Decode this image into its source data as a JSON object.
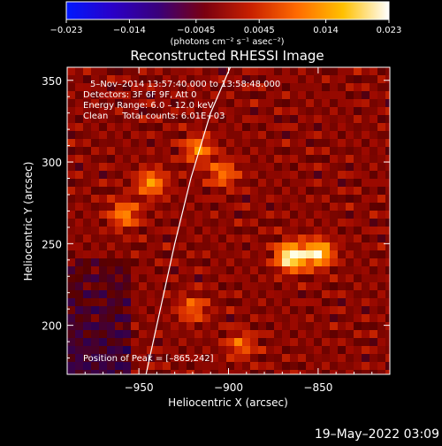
{
  "colorbar": {
    "tick_labels": [
      "−0.023",
      "−0.014",
      "−0.0045",
      "0.0045",
      "0.014",
      "0.023"
    ],
    "tick_values": [
      -0.023,
      -0.014,
      -0.0045,
      0.0045,
      0.014,
      0.023
    ],
    "range": [
      -0.023,
      0.023
    ],
    "unit_label": "(photons cm⁻² s⁻¹ asec⁻²)",
    "stops": [
      "#0018ff",
      "#2a00c8",
      "#3a007a",
      "#7a0010",
      "#c82000",
      "#ff6a00",
      "#ffc000",
      "#ffffff"
    ]
  },
  "title": "Reconstructed RHESSI Image",
  "annotations": {
    "time_range": "5–Nov–2014 13:57:40.000 to 13:58:48.000",
    "detectors": "Detectors: 3F 6F 9F, Att 0",
    "energy": "Energy Range: 6.0 – 12.0 keV",
    "clean": "Clean     Total counts: 6.01E+03",
    "peak": "Position of Peak = [–865,242]"
  },
  "footer_timestamp": "19–May–2022 03:09",
  "chart_data": {
    "type": "heatmap",
    "title": "Reconstructed RHESSI Image",
    "xlabel": "Heliocentric X (arcsec)",
    "ylabel": "Heliocentric Y (arcsec)",
    "xlim": [
      -990,
      -810
    ],
    "ylim": [
      170,
      358
    ],
    "xticks": [
      -950,
      -900,
      -850
    ],
    "xtick_labels": [
      "−950",
      "−900",
      "−850"
    ],
    "yticks": [
      200,
      250,
      300,
      350
    ],
    "ytick_labels": [
      "200",
      "250",
      "300",
      "350"
    ],
    "peak_position": [
      -865,
      242
    ],
    "sources": [
      {
        "x": -865,
        "y": 242,
        "intensity": 1.0
      },
      {
        "x": -850,
        "y": 244,
        "intensity": 0.82
      },
      {
        "x": -943,
        "y": 287,
        "intensity": 0.55
      },
      {
        "x": -917,
        "y": 308,
        "intensity": 0.5
      },
      {
        "x": -958,
        "y": 268,
        "intensity": 0.52
      },
      {
        "x": -903,
        "y": 293,
        "intensity": 0.45
      },
      {
        "x": -920,
        "y": 210,
        "intensity": 0.4
      },
      {
        "x": -893,
        "y": 188,
        "intensity": 0.38
      }
    ],
    "limb": [
      [
        -946,
        170
      ],
      [
        -938,
        210
      ],
      [
        -930,
        250
      ],
      [
        -921,
        290
      ],
      [
        -910,
        330
      ],
      [
        -899,
        358
      ]
    ],
    "grid": false
  }
}
